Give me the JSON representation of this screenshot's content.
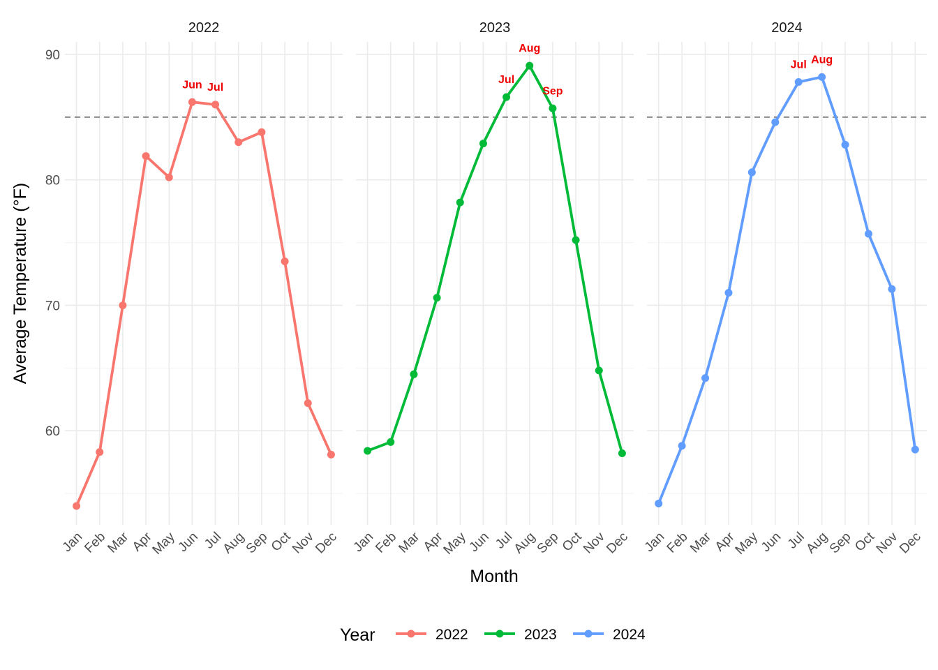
{
  "chart_data": {
    "type": "line",
    "facet_by": "Year",
    "xlabel": "Month",
    "ylabel": "Average Temperature (°F)",
    "ylim": [
      52.5,
      91
    ],
    "y_ticks": [
      60,
      70,
      80,
      90
    ],
    "reference_line": {
      "y": 85,
      "style": "dashed"
    },
    "categories": [
      "Jan",
      "Feb",
      "Mar",
      "Apr",
      "May",
      "Jun",
      "Jul",
      "Aug",
      "Sep",
      "Oct",
      "Nov",
      "Dec"
    ],
    "series": [
      {
        "name": "2022",
        "color": "#F8766D",
        "values": [
          54.0,
          58.3,
          70.0,
          81.9,
          80.2,
          86.2,
          86.0,
          83.0,
          83.8,
          73.5,
          62.2,
          58.1
        ],
        "labels": [
          "Jun",
          "Jul"
        ]
      },
      {
        "name": "2023",
        "color": "#00BA38",
        "values": [
          58.4,
          59.1,
          64.5,
          70.6,
          78.2,
          82.9,
          86.6,
          89.1,
          85.7,
          75.2,
          64.8,
          58.2
        ],
        "labels": [
          "Jul",
          "Aug",
          "Sep"
        ]
      },
      {
        "name": "2024",
        "color": "#619CFF",
        "values": [
          54.2,
          58.8,
          64.2,
          71.0,
          80.6,
          84.6,
          87.8,
          88.2,
          82.8,
          75.7,
          71.3,
          58.5
        ],
        "labels": [
          "Jul",
          "Aug"
        ]
      }
    ],
    "legend": {
      "title": "Year",
      "position": "bottom"
    },
    "grid": true
  }
}
